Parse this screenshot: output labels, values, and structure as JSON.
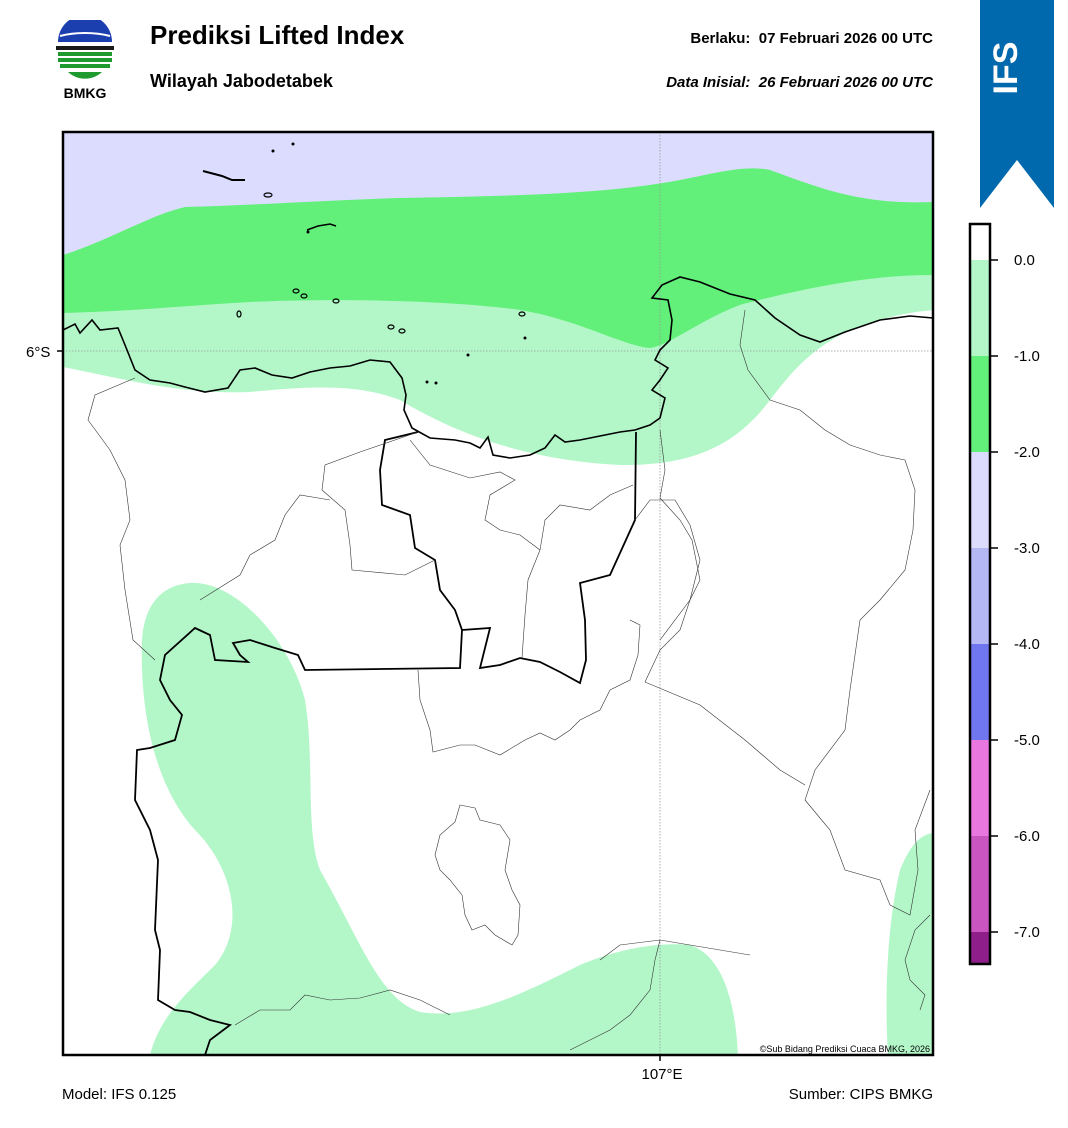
{
  "header": {
    "title": "Prediksi Lifted Index",
    "subtitle": "Wilayah Jabodetabek",
    "valid_label": "Berlaku:",
    "valid_time": "07 Februari 2026 00 UTC",
    "init_label": "Data Inisial:",
    "init_time": "26 Februari 2026 00 UTC",
    "logo_text": "BMKG"
  },
  "ribbon": {
    "text": "IFS",
    "color": "#0069ad"
  },
  "map": {
    "lat_label": "6°S",
    "lon_label": "107°E",
    "copyright": "©Sub Bidang Prediksi Cuaca BMKG, 2026"
  },
  "colorbar": {
    "ticks": [
      "0.0",
      "-1.0",
      "-2.0",
      "-3.0",
      "-4.0",
      "-5.0",
      "-6.0",
      "-7.0"
    ],
    "colors": [
      "#ffffff",
      "#b3f7c9",
      "#63f07a",
      "#dcdcff",
      "#b4b8f5",
      "#7075f0",
      "#e878e0",
      "#c855c0",
      "#8e1f8a"
    ]
  },
  "footer": {
    "model": "Model: IFS 0.125",
    "source": "Sumber: CIPS BMKG"
  }
}
